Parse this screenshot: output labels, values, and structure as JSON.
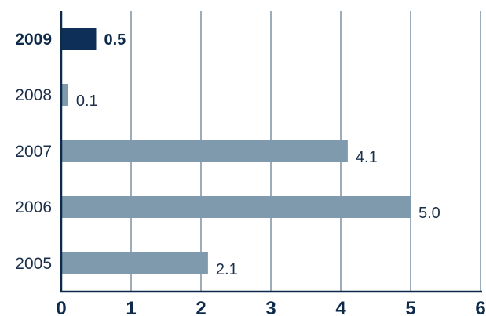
{
  "chart_data": {
    "type": "bar",
    "orientation": "horizontal",
    "categories": [
      "2009",
      "2008",
      "2007",
      "2006",
      "2005"
    ],
    "values": [
      0.5,
      0.1,
      4.1,
      5.0,
      2.1
    ],
    "value_labels": [
      "0.5",
      "0.1",
      "4.1",
      "5.0",
      "2.1"
    ],
    "highlight_category": "2009",
    "xlim": [
      0,
      6
    ],
    "xticks": [
      "0",
      "1",
      "2",
      "3",
      "4",
      "5",
      "6"
    ],
    "grid": true,
    "colors": {
      "bar": "#7f9aad",
      "highlight": "#0e3058",
      "axis": "#0e2a4a",
      "grid": "#5f7488"
    }
  }
}
